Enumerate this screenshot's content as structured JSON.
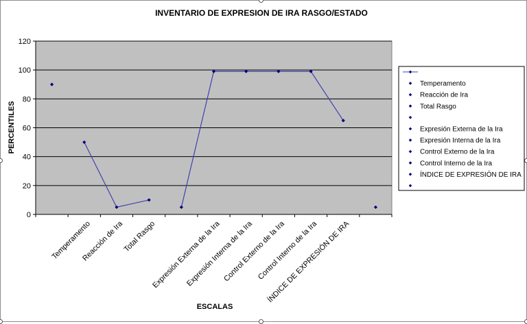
{
  "chart_data": {
    "type": "line",
    "title": "INVENTARIO DE EXPRESION DE IRA RASGO/ESTADO",
    "xlabel": "ESCALAS",
    "ylabel": "PERCENTILES",
    "ylim": [
      0,
      120
    ],
    "yticks": [
      0,
      20,
      40,
      60,
      80,
      100,
      120
    ],
    "grid": true,
    "legend_position": "right",
    "categories": [
      "",
      "Temperamento",
      "Reacción de Ira",
      "Total Rasgo",
      "",
      "Expresión Externa de la Ira",
      "Expresión Interna de la Ira",
      "Control Externo de la Ira",
      "Control Interno de la Ira",
      "ÍNDICE DE EXPRESIÓN DE IRA",
      ""
    ],
    "x_tick_labels": [
      "Temperamento",
      "Reacción de Ira",
      "Total Rasgo",
      "Expresión Externa de la Ira",
      "Expresión Interna de la Ira",
      "Control Externo de la Ira",
      "Control Interno de la Ira",
      "ÍNDICE DE EXPRESIÓN DE IRA"
    ],
    "values": [
      90,
      50,
      5,
      10,
      5,
      99,
      99,
      99,
      99,
      65,
      5
    ],
    "connected_segments": [
      [
        1,
        3
      ],
      [
        4,
        9
      ]
    ],
    "legend_entries": [
      "",
      "Temperamento",
      "Reacción de Ira",
      "Total Rasgo",
      "",
      "Expresión Externa de la Ira",
      "Expresión Interna de la Ira",
      "Control Externo de la Ira",
      "Control Interno de la Ira",
      "ÍNDICE DE EXPRESIÓN DE IRA",
      ""
    ],
    "colors": {
      "plot_background": "#c0c0c0",
      "series": "#000080",
      "series_line": "#4040b0",
      "gridline": "#000000"
    }
  }
}
